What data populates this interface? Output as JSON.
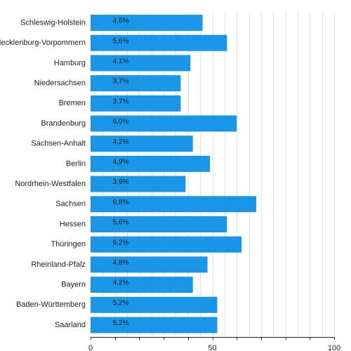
{
  "chart_data": {
    "type": "bar",
    "orientation": "horizontal",
    "title": "",
    "xlabel": "",
    "ylabel": "",
    "categories": [
      "Schleswig-Holstein",
      "Mecklenburg-Vorpommern",
      "Hamburg",
      "Niedersachsen",
      "Bremen",
      "Brandenburg",
      "Sachsen-Anhalt",
      "Berlin",
      "Nordrhein-Westfalen",
      "Sachsen",
      "Hessen",
      "Thüringen",
      "Rheinland-Pfalz",
      "Bayern",
      "Baden-Württemberg",
      "Saarland"
    ],
    "values": [
      4.6,
      5.6,
      4.1,
      3.7,
      3.7,
      6.0,
      4.2,
      4.9,
      3.9,
      6.8,
      5.6,
      6.2,
      4.8,
      4.2,
      5.2,
      5.2
    ],
    "value_labels": [
      "4,6%",
      "5,6%",
      "4,1%",
      "3,7%",
      "3,7%",
      "6,0%",
      "4,2%",
      "4,9%",
      "3,9%",
      "6,8%",
      "5,6%",
      "6,2%",
      "4,8%",
      "4,2%",
      "5,2%",
      "5,2%"
    ],
    "xlim": [
      0,
      100
    ],
    "bar_length_scale": 10,
    "x_ticks": [
      0,
      50,
      100
    ],
    "x_tick_labels": [
      "0",
      "50",
      "100"
    ],
    "grid": true,
    "colors": {
      "bar": "#1a96e8",
      "grid": "#e2e2e2",
      "axis": "#222222"
    }
  }
}
